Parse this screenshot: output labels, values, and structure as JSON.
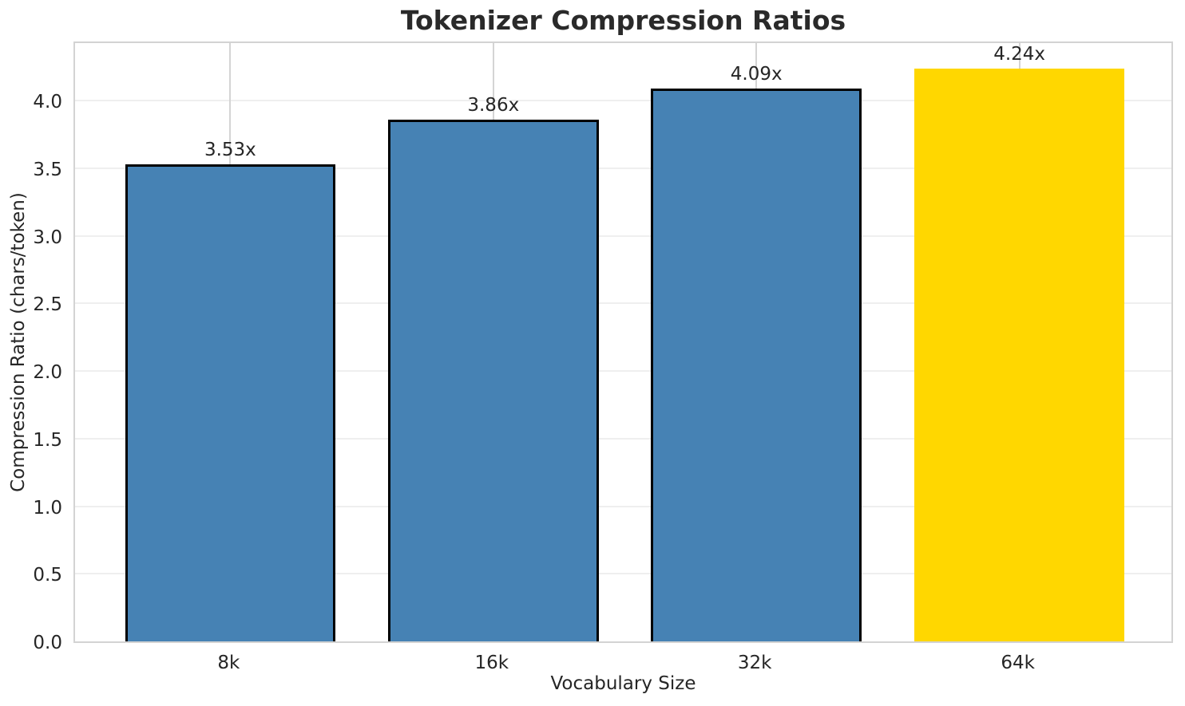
{
  "chart_data": {
    "type": "bar",
    "title": "Tokenizer Compression Ratios",
    "xlabel": "Vocabulary Size",
    "ylabel": "Compression Ratio (chars/token)",
    "categories": [
      "8k",
      "16k",
      "32k",
      "64k"
    ],
    "values": [
      3.53,
      3.86,
      4.09,
      4.24
    ],
    "bar_labels": [
      "3.53x",
      "3.86x",
      "4.09x",
      "4.24x"
    ],
    "bar_colors": [
      "#4682b4",
      "#4682b4",
      "#4682b4",
      "#ffd700"
    ],
    "bar_edge_colors": [
      "#000000",
      "#000000",
      "#000000",
      null
    ],
    "bar_width": 0.8,
    "xlim": [
      -0.59,
      3.59
    ],
    "ylim": [
      0,
      4.45
    ],
    "ytick_values": [
      0,
      0.5,
      1,
      1.5,
      2,
      2.5,
      3,
      3.5,
      4
    ],
    "ytick_labels": [
      "0.0",
      "0.5",
      "1.0",
      "1.5",
      "2.0",
      "2.5",
      "3.0",
      "3.5",
      "4.0"
    ],
    "grid": true,
    "legend": "none",
    "colors": {
      "background": "#ffffff",
      "text": "#262626",
      "spine": "#d3d3d3",
      "grid_horizontal": "#efefef",
      "grid_vertical": "#d4d4d4",
      "highlight_bar": "#ffd700",
      "default_bar": "#4682b4"
    }
  }
}
